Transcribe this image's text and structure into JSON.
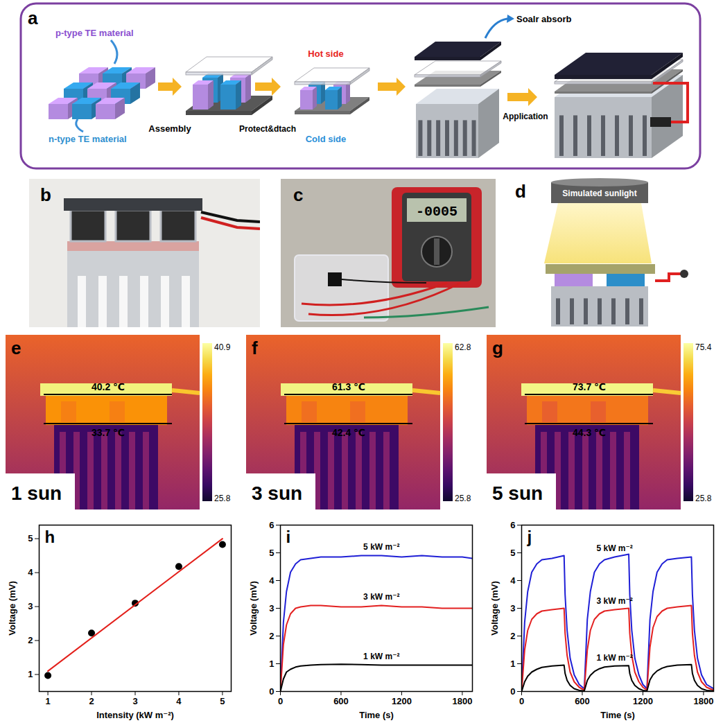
{
  "panels": {
    "a": {
      "label": "a",
      "texts": {
        "p_type": "p-type TE material",
        "n_type": "n-type TE material",
        "step1": "Assembly",
        "step2": "Protect&dtach",
        "hot": "Hot side",
        "cold": "Cold side",
        "absorb": "Soalr absorb",
        "step4": "Application"
      }
    },
    "b": {
      "label": "b"
    },
    "c": {
      "label": "c",
      "display": "-0005"
    },
    "d": {
      "label": "d",
      "light": "Simulated sunlight"
    },
    "thermal": [
      {
        "label": "e",
        "condition": "1 sun",
        "hot": {
          "value": 40.2,
          "label": "40.2 ℃"
        },
        "cold": {
          "value": 33.7,
          "label": "33.7 ℃"
        },
        "colorbar": {
          "min": 25.8,
          "max": 40.9
        }
      },
      {
        "label": "f",
        "condition": "3 sun",
        "hot": {
          "value": 61.3,
          "label": "61.3 ℃"
        },
        "cold": {
          "value": 42.4,
          "label": "42.4 ℃"
        },
        "colorbar": {
          "min": 25.8,
          "max": 62.8
        }
      },
      {
        "label": "g",
        "condition": "5 sun",
        "hot": {
          "value": 73.7,
          "label": "73.7 ℃"
        },
        "cold": {
          "value": 44.3,
          "label": "44.3 ℃"
        },
        "colorbar": {
          "min": 25.8,
          "max": 75.4
        }
      }
    ]
  },
  "chart_data": [
    {
      "type": "scatter",
      "title": "h",
      "xlabel": "Intensity (kW m⁻²)",
      "ylabel": "Voltage (mV)",
      "x": [
        1,
        2,
        3,
        4,
        5
      ],
      "series": [
        {
          "type": "scatter",
          "color": "#000000",
          "marker": "circle",
          "values": [
            0.97,
            2.22,
            3.1,
            4.18,
            4.83
          ]
        },
        {
          "type": "line",
          "color": "#e3201b",
          "x": [
            1,
            5
          ],
          "values": [
            1.1,
            5.0
          ]
        }
      ],
      "xlim": [
        0.8,
        5.2
      ],
      "xticks": [
        1,
        2,
        3,
        4,
        5
      ],
      "ylim": [
        0.5,
        5.4
      ],
      "yticks": [
        1,
        2,
        3,
        4,
        5
      ],
      "grid": false
    },
    {
      "type": "line",
      "title": "i",
      "xlabel": "Time (s)",
      "ylabel": "Voltage (mV)",
      "x": [
        0,
        30,
        60,
        100,
        150,
        200,
        300,
        400,
        600,
        800,
        1000,
        1200,
        1400,
        1600,
        1800,
        1900
      ],
      "series": [
        {
          "name": "5 kW m⁻²",
          "color": "#1f1fd6",
          "values": [
            0,
            2.5,
            3.6,
            4.3,
            4.6,
            4.75,
            4.8,
            4.85,
            4.85,
            4.9,
            4.9,
            4.85,
            4.9,
            4.85,
            4.85,
            4.8
          ]
        },
        {
          "name": "3 kW m⁻²",
          "color": "#e32020",
          "values": [
            0,
            1.7,
            2.4,
            2.8,
            3.0,
            3.05,
            3.1,
            3.1,
            3.05,
            3.05,
            3.1,
            3.05,
            3.05,
            3.0,
            3.0,
            3.0
          ]
        },
        {
          "name": "1 kW m⁻²",
          "color": "#000000",
          "values": [
            0,
            0.45,
            0.7,
            0.8,
            0.88,
            0.92,
            0.95,
            0.97,
            0.98,
            0.97,
            0.95,
            0.95,
            0.95,
            0.95,
            0.95,
            0.95
          ]
        }
      ],
      "xlim": [
        0,
        1900
      ],
      "xticks": [
        0,
        600,
        1200,
        1800
      ],
      "ylim": [
        0,
        6
      ],
      "yticks": [
        0,
        1,
        2,
        3,
        4,
        5,
        6
      ],
      "grid": false
    },
    {
      "type": "line",
      "title": "j",
      "xlabel": "Time (s)",
      "ylabel": "Voltage (mV)",
      "x": [
        0,
        30,
        60,
        100,
        150,
        200,
        300,
        420,
        430,
        450,
        480,
        520,
        570,
        620,
        650,
        680,
        720,
        770,
        820,
        920,
        1060,
        1070,
        1090,
        1120,
        1160,
        1200,
        1240,
        1270,
        1300,
        1340,
        1390,
        1440,
        1540,
        1680,
        1690,
        1710,
        1740,
        1780,
        1830,
        1900
      ],
      "series": [
        {
          "name": "5 kW m⁻²",
          "color": "#1f1fd6",
          "values": [
            0,
            2.5,
            3.6,
            4.3,
            4.6,
            4.75,
            4.8,
            4.9,
            3.5,
            2.2,
            1.2,
            0.6,
            0.25,
            0.1,
            2.6,
            3.6,
            4.3,
            4.6,
            4.75,
            4.85,
            4.95,
            3.5,
            2.2,
            1.2,
            0.6,
            0.25,
            0.1,
            2.6,
            3.6,
            4.3,
            4.6,
            4.75,
            4.8,
            4.85,
            3.5,
            2.2,
            1.2,
            0.6,
            0.25,
            0.1
          ]
        },
        {
          "name": "3 kW m⁻²",
          "color": "#e32020",
          "values": [
            0,
            1.5,
            2.2,
            2.6,
            2.8,
            2.9,
            2.95,
            3.0,
            2.1,
            1.3,
            0.7,
            0.35,
            0.15,
            0.05,
            1.5,
            2.2,
            2.6,
            2.8,
            2.9,
            2.95,
            3.0,
            2.1,
            1.3,
            0.7,
            0.35,
            0.15,
            0.05,
            1.6,
            2.3,
            2.7,
            2.9,
            3.0,
            3.05,
            3.1,
            2.1,
            1.3,
            0.7,
            0.35,
            0.15,
            0.05
          ]
        },
        {
          "name": "1 kW m⁻²",
          "color": "#000000",
          "values": [
            0,
            0.35,
            0.55,
            0.7,
            0.8,
            0.87,
            0.92,
            0.95,
            0.65,
            0.4,
            0.22,
            0.1,
            0.04,
            0.02,
            0.4,
            0.58,
            0.72,
            0.82,
            0.88,
            0.92,
            0.93,
            0.65,
            0.4,
            0.22,
            0.1,
            0.04,
            0.02,
            0.42,
            0.6,
            0.74,
            0.84,
            0.9,
            0.95,
            0.97,
            0.65,
            0.4,
            0.22,
            0.1,
            0.04,
            0.02
          ]
        }
      ],
      "xlim": [
        0,
        1900
      ],
      "xticks": [
        0,
        600,
        1200,
        1800
      ],
      "ylim": [
        0,
        6
      ],
      "yticks": [
        0,
        1,
        2,
        3,
        4,
        5,
        6
      ],
      "grid": false
    }
  ]
}
